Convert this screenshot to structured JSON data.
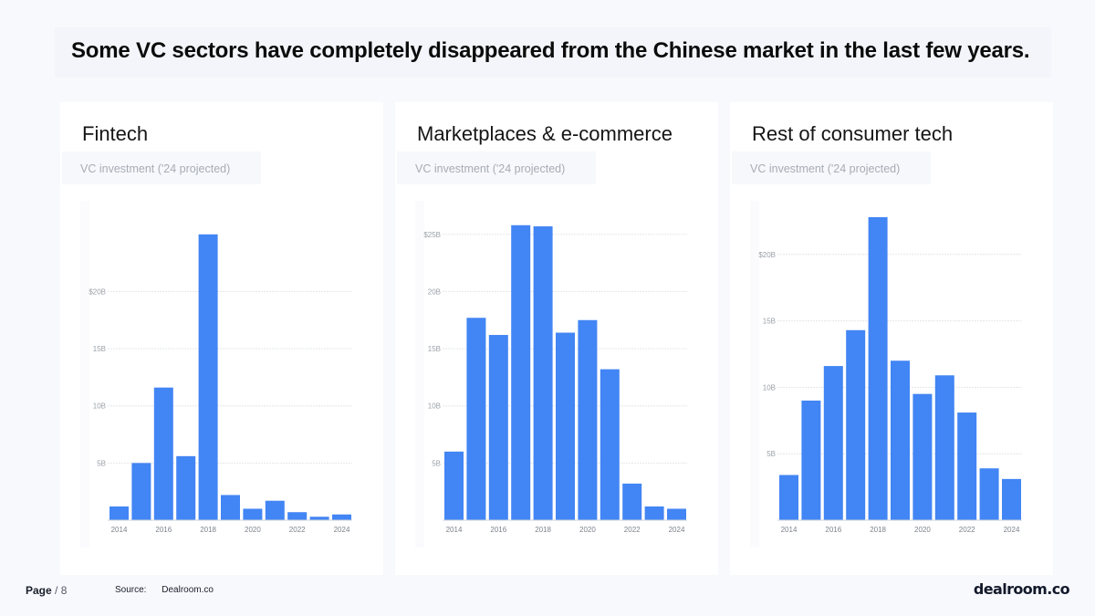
{
  "headline": "Some VC sectors have completely disappeared from the Chinese market in the last few years.",
  "footer": {
    "page_label": "Page",
    "page_suffix": "/ 8",
    "source_label": "Source:",
    "source_value": "Dealroom.co",
    "logo_text": "dealroom.co"
  },
  "colors": {
    "bar": "#4285f4",
    "grid": "#e4e6ea",
    "tick": "#9aa0a8"
  },
  "chart_data": [
    {
      "type": "bar",
      "title": "Fintech",
      "subtitle": "VC investment ('24 projected)",
      "x": [
        2014,
        2015,
        2016,
        2017,
        2018,
        2019,
        2020,
        2021,
        2022,
        2023,
        2024
      ],
      "x_tick_labels": [
        "2014",
        "",
        "2016",
        "",
        "2018",
        "",
        "2020",
        "",
        "2022",
        "",
        "2024"
      ],
      "values": [
        1.2,
        5.0,
        11.6,
        5.6,
        25.0,
        2.2,
        1.0,
        1.7,
        0.7,
        0.3,
        0.5
      ],
      "unit": "B",
      "y_ticks": [
        5,
        10,
        15,
        20
      ],
      "y_tick_labels": [
        "5B",
        "10B",
        "15B",
        "$20B"
      ],
      "ylim": [
        0,
        26.5
      ],
      "grid": true
    },
    {
      "type": "bar",
      "title": "Marketplaces & e-commerce",
      "subtitle": "VC investment ('24 projected)",
      "x": [
        2014,
        2015,
        2016,
        2017,
        2018,
        2019,
        2020,
        2021,
        2022,
        2023,
        2024
      ],
      "x_tick_labels": [
        "2014",
        "",
        "2016",
        "",
        "2018",
        "",
        "2020",
        "",
        "2022",
        "",
        "2024"
      ],
      "values": [
        6.0,
        17.7,
        16.2,
        25.8,
        25.7,
        16.4,
        17.5,
        13.2,
        3.2,
        1.2,
        1.0
      ],
      "unit": "B",
      "y_ticks": [
        5,
        10,
        15,
        20,
        25
      ],
      "y_tick_labels": [
        "5B",
        "10B",
        "15B",
        "20B",
        "$25B"
      ],
      "ylim": [
        0,
        26.5
      ],
      "grid": true
    },
    {
      "type": "bar",
      "title": "Rest of consumer tech",
      "subtitle": "VC investment ('24 projected)",
      "x": [
        2014,
        2015,
        2016,
        2017,
        2018,
        2019,
        2020,
        2021,
        2022,
        2023,
        2024
      ],
      "x_tick_labels": [
        "2014",
        "",
        "2016",
        "",
        "2018",
        "",
        "2020",
        "",
        "2022",
        "",
        "2024"
      ],
      "values": [
        3.4,
        9.0,
        11.6,
        14.3,
        22.8,
        12.0,
        9.5,
        10.9,
        8.1,
        3.9,
        3.1
      ],
      "unit": "B",
      "y_ticks": [
        5,
        10,
        15,
        20
      ],
      "y_tick_labels": [
        "5B",
        "10B",
        "15B",
        "$20B"
      ],
      "ylim": [
        0,
        22.8
      ],
      "grid": true
    }
  ]
}
